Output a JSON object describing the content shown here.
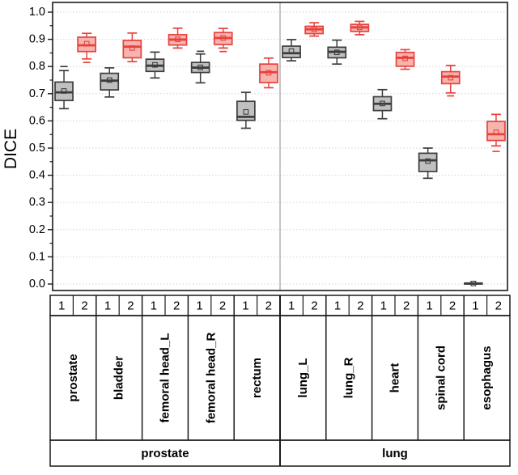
{
  "chart_data": {
    "type": "boxplot",
    "title": "",
    "ylabel": "DICE",
    "xlabel": "",
    "ylim": [
      0.0,
      1.0
    ],
    "ytick_labels": [
      "0.0",
      "0.1",
      "0.2",
      "0.3",
      "0.4",
      "0.5",
      "0.6",
      "0.7",
      "0.8",
      "0.9",
      "1.0"
    ],
    "grid": "horizontal-dotted",
    "legend_position": "none",
    "series_labels": [
      "1",
      "2"
    ],
    "series_colors": [
      {
        "line": "#3d3d3d",
        "fill": "#c0c0c0"
      },
      {
        "line": "#e8413c",
        "fill": "#f7b4af"
      }
    ],
    "frame_color": "#1a1a1a",
    "gridline_color": "#d4d4d4",
    "group_divider_color": "#9c9c9c",
    "groups": [
      {
        "name": "prostate",
        "organs": [
          {
            "name": "prostate",
            "boxes": [
              {
                "series": "1",
                "whisker_low": 0.645,
                "q1": 0.675,
                "median": 0.705,
                "q3": 0.743,
                "whisker_high": 0.785,
                "mean": 0.71,
                "max": 0.8
              },
              {
                "series": "2",
                "whisker_low": 0.828,
                "q1": 0.855,
                "median": 0.878,
                "q3": 0.908,
                "whisker_high": 0.922,
                "mean": 0.884,
                "min": 0.815
              }
            ]
          },
          {
            "name": "bladder",
            "boxes": [
              {
                "series": "1",
                "whisker_low": 0.688,
                "q1": 0.714,
                "median": 0.748,
                "q3": 0.775,
                "whisker_high": 0.795,
                "mean": 0.75
              },
              {
                "series": "2",
                "whisker_low": 0.818,
                "q1": 0.832,
                "median": 0.873,
                "q3": 0.896,
                "whisker_high": 0.923,
                "mean": 0.868
              }
            ]
          },
          {
            "name": "femoral head_L",
            "boxes": [
              {
                "series": "1",
                "whisker_low": 0.758,
                "q1": 0.782,
                "median": 0.803,
                "q3": 0.827,
                "whisker_high": 0.853,
                "mean": 0.806
              },
              {
                "series": "2",
                "whisker_low": 0.868,
                "q1": 0.879,
                "median": 0.899,
                "q3": 0.917,
                "whisker_high": 0.941,
                "mean": 0.9
              }
            ]
          },
          {
            "name": "femoral head_R",
            "boxes": [
              {
                "series": "1",
                "whisker_low": 0.74,
                "q1": 0.778,
                "median": 0.796,
                "q3": 0.815,
                "whisker_high": 0.846,
                "mean": 0.797,
                "max": 0.856
              },
              {
                "series": "2",
                "whisker_low": 0.868,
                "q1": 0.881,
                "median": 0.905,
                "q3": 0.925,
                "whisker_high": 0.94,
                "mean": 0.905,
                "min": 0.855
              }
            ]
          },
          {
            "name": "rectum",
            "boxes": [
              {
                "series": "1",
                "whisker_low": 0.573,
                "q1": 0.602,
                "median": 0.615,
                "q3": 0.672,
                "whisker_high": 0.705,
                "mean": 0.633
              },
              {
                "series": "2",
                "whisker_low": 0.722,
                "q1": 0.741,
                "median": 0.779,
                "q3": 0.809,
                "whisker_high": 0.831,
                "mean": 0.777
              }
            ]
          }
        ]
      },
      {
        "name": "lung",
        "organs": [
          {
            "name": "lung_L",
            "boxes": [
              {
                "series": "1",
                "whisker_low": 0.821,
                "q1": 0.833,
                "median": 0.849,
                "q3": 0.875,
                "whisker_high": 0.899,
                "mean": 0.857
              },
              {
                "series": "2",
                "whisker_low": 0.912,
                "q1": 0.921,
                "median": 0.937,
                "q3": 0.948,
                "whisker_high": 0.961,
                "mean": 0.937
              }
            ]
          },
          {
            "name": "lung_R",
            "boxes": [
              {
                "series": "1",
                "whisker_low": 0.809,
                "q1": 0.832,
                "median": 0.854,
                "q3": 0.871,
                "whisker_high": 0.897,
                "mean": 0.852
              },
              {
                "series": "2",
                "whisker_low": 0.917,
                "q1": 0.929,
                "median": 0.944,
                "q3": 0.955,
                "whisker_high": 0.966,
                "mean": 0.944
              }
            ]
          },
          {
            "name": "heart",
            "boxes": [
              {
                "series": "1",
                "whisker_low": 0.608,
                "q1": 0.638,
                "median": 0.663,
                "q3": 0.689,
                "whisker_high": 0.715,
                "mean": 0.664
              },
              {
                "series": "2",
                "whisker_low": 0.79,
                "q1": 0.801,
                "median": 0.832,
                "q3": 0.852,
                "whisker_high": 0.862,
                "mean": 0.83
              }
            ]
          },
          {
            "name": "spinal cord",
            "boxes": [
              {
                "series": "1",
                "whisker_low": 0.389,
                "q1": 0.414,
                "median": 0.455,
                "q3": 0.481,
                "whisker_high": 0.5,
                "mean": 0.452
              },
              {
                "series": "2",
                "whisker_low": 0.703,
                "q1": 0.737,
                "median": 0.763,
                "q3": 0.781,
                "whisker_high": 0.804,
                "mean": 0.759,
                "min": 0.692
              }
            ]
          },
          {
            "name": "esophagus",
            "boxes": [
              {
                "series": "1",
                "whisker_low": 0.0,
                "q1": 0.001,
                "median": 0.002,
                "q3": 0.003,
                "whisker_high": 0.004,
                "mean": 0.002
              },
              {
                "series": "2",
                "whisker_low": 0.508,
                "q1": 0.528,
                "median": 0.551,
                "q3": 0.598,
                "whisker_high": 0.624,
                "mean": 0.558,
                "min": 0.488
              }
            ]
          }
        ]
      }
    ]
  }
}
